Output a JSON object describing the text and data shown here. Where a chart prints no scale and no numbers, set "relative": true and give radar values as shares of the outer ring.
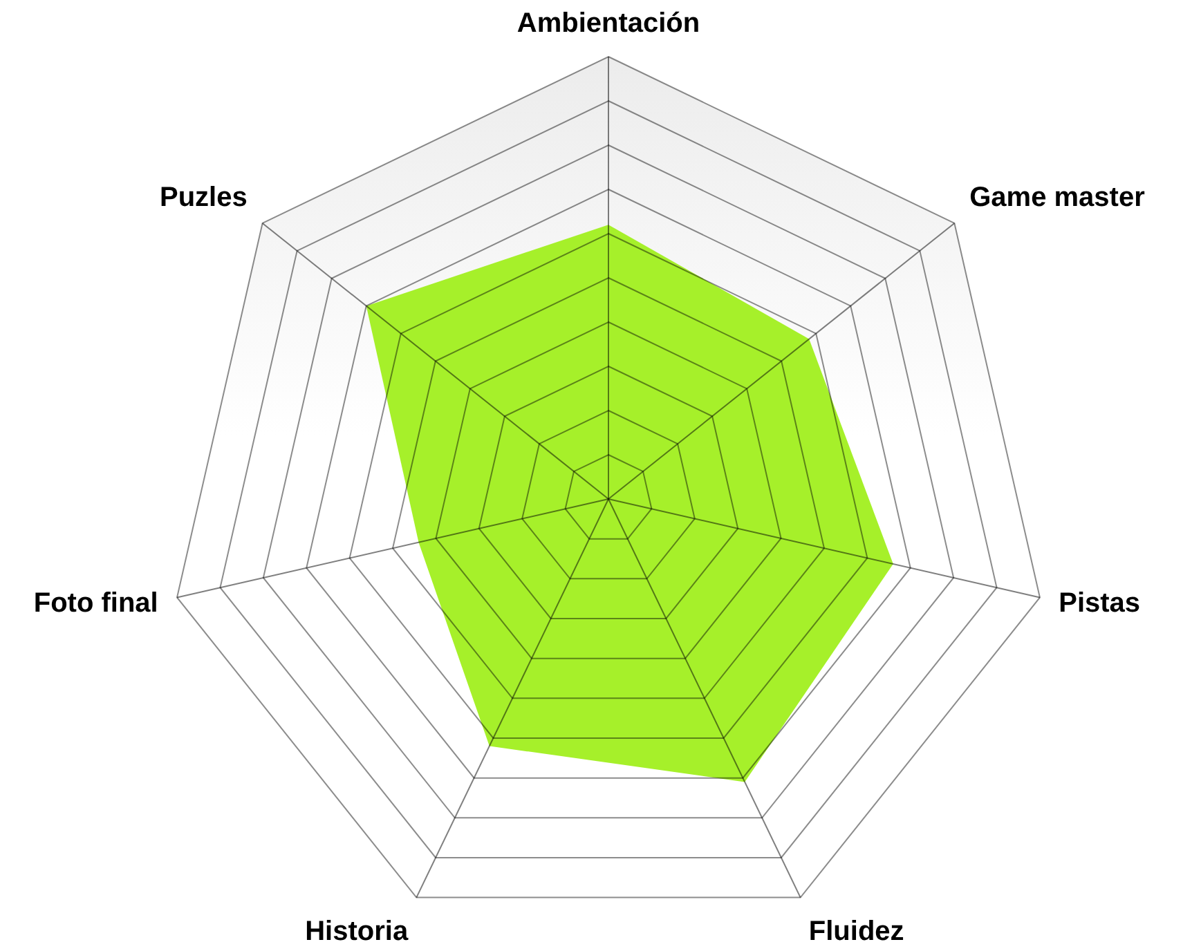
{
  "chart_data": {
    "type": "radar",
    "relative": true,
    "categories": [
      "Ambientación",
      "Game master",
      "Pistas",
      "Fluidez",
      "Historia",
      "Foto final",
      "Puzles"
    ],
    "series": [
      {
        "color": "#a6f02a",
        "values": [
          0.62,
          0.58,
          0.66,
          0.71,
          0.62,
          0.44,
          0.7
        ]
      }
    ]
  }
}
